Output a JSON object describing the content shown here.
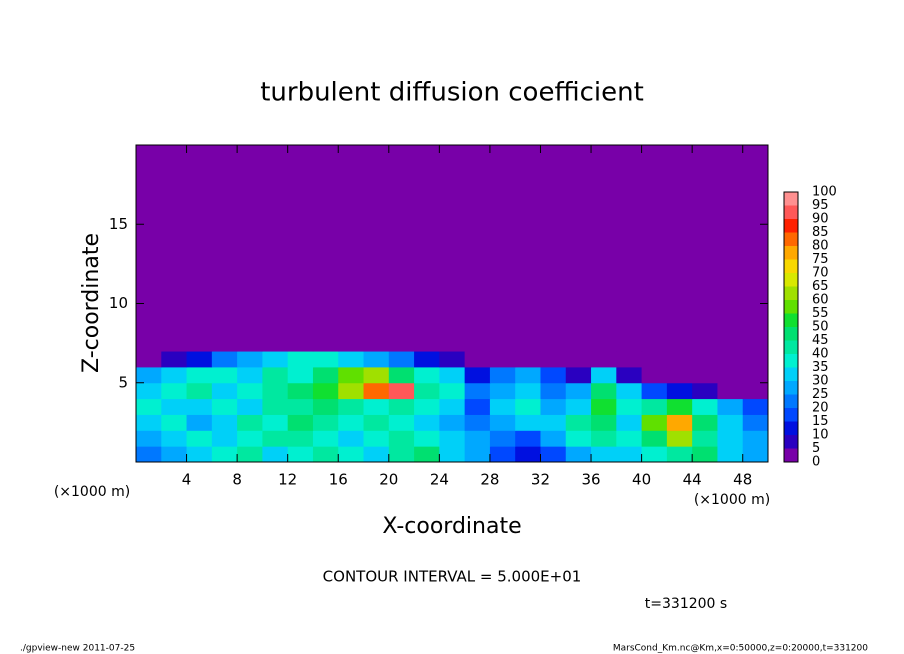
{
  "chart_data": {
    "type": "heatmap",
    "title": "turbulent diffusion coefficient",
    "x_label": "X-coordinate",
    "y_label": "Z-coordinate",
    "x_unit": "(×1000 m)",
    "y_unit": "(×1000 m)",
    "contour_interval": "CONTOUR INTERVAL = 5.000E+01",
    "time": "t=331200 s",
    "footer_left": "./gpview-new  2011-07-25",
    "footer_right": "MarsCond_Km.nc@Km,x=0:50000,z=0:20000,t=331200",
    "xlim": [
      0,
      50
    ],
    "ylim": [
      0,
      20
    ],
    "xticks": [
      4,
      8,
      12,
      16,
      20,
      24,
      28,
      32,
      36,
      40,
      44,
      48
    ],
    "yticks": [
      5,
      10,
      15
    ],
    "x": [
      0,
      2,
      4,
      6,
      8,
      10,
      12,
      14,
      16,
      18,
      20,
      22,
      24,
      26,
      28,
      30,
      32,
      34,
      36,
      38,
      40,
      42,
      44,
      46,
      48,
      50
    ],
    "z": [
      0,
      1,
      2,
      3,
      4,
      5,
      6,
      7,
      20
    ],
    "values": [
      [
        20,
        25,
        30,
        35,
        40,
        30,
        35,
        40,
        35,
        30,
        40,
        45,
        30,
        25,
        15,
        10,
        15,
        25,
        30,
        30,
        35,
        40,
        45,
        30,
        25
      ],
      [
        25,
        30,
        35,
        30,
        35,
        40,
        40,
        35,
        30,
        35,
        40,
        35,
        30,
        25,
        20,
        15,
        25,
        35,
        40,
        35,
        45,
        60,
        40,
        30,
        25
      ],
      [
        30,
        35,
        25,
        30,
        40,
        35,
        45,
        40,
        35,
        40,
        35,
        30,
        25,
        20,
        25,
        30,
        30,
        40,
        45,
        30,
        55,
        75,
        45,
        30,
        20
      ],
      [
        35,
        30,
        30,
        35,
        30,
        40,
        40,
        45,
        40,
        35,
        40,
        35,
        30,
        15,
        30,
        35,
        25,
        30,
        50,
        35,
        40,
        50,
        35,
        25,
        15
      ],
      [
        30,
        35,
        40,
        30,
        35,
        40,
        45,
        50,
        60,
        80,
        90,
        40,
        35,
        20,
        25,
        30,
        20,
        25,
        45,
        30,
        15,
        10,
        5,
        0,
        0
      ],
      [
        25,
        30,
        35,
        35,
        30,
        40,
        35,
        45,
        55,
        60,
        45,
        35,
        30,
        10,
        20,
        25,
        15,
        5,
        30,
        5,
        0,
        0,
        0,
        0,
        0
      ],
      [
        0,
        5,
        10,
        20,
        25,
        30,
        35,
        35,
        30,
        25,
        20,
        10,
        5,
        0,
        0,
        0,
        0,
        0,
        0,
        0,
        0,
        0,
        0,
        0,
        0
      ],
      [
        0,
        0,
        0,
        0,
        0,
        0,
        0,
        0,
        0,
        0,
        0,
        0,
        0,
        0,
        0,
        0,
        0,
        0,
        0,
        0,
        0,
        0,
        0,
        0,
        0
      ]
    ],
    "levels": [
      0,
      5,
      10,
      15,
      20,
      25,
      30,
      35,
      40,
      45,
      50,
      55,
      60,
      65,
      70,
      75,
      80,
      85,
      90,
      95,
      100
    ],
    "colors": [
      "#7800a8",
      "#2a00c0",
      "#0010e0",
      "#0048ff",
      "#0078ff",
      "#00a8ff",
      "#00d0f8",
      "#00f0d0",
      "#00e8a0",
      "#00e070",
      "#10e030",
      "#60e000",
      "#a0e000",
      "#d8e800",
      "#f8d800",
      "#ffa800",
      "#ff6800",
      "#ff2000",
      "#ff5858",
      "#ff9090"
    ]
  }
}
